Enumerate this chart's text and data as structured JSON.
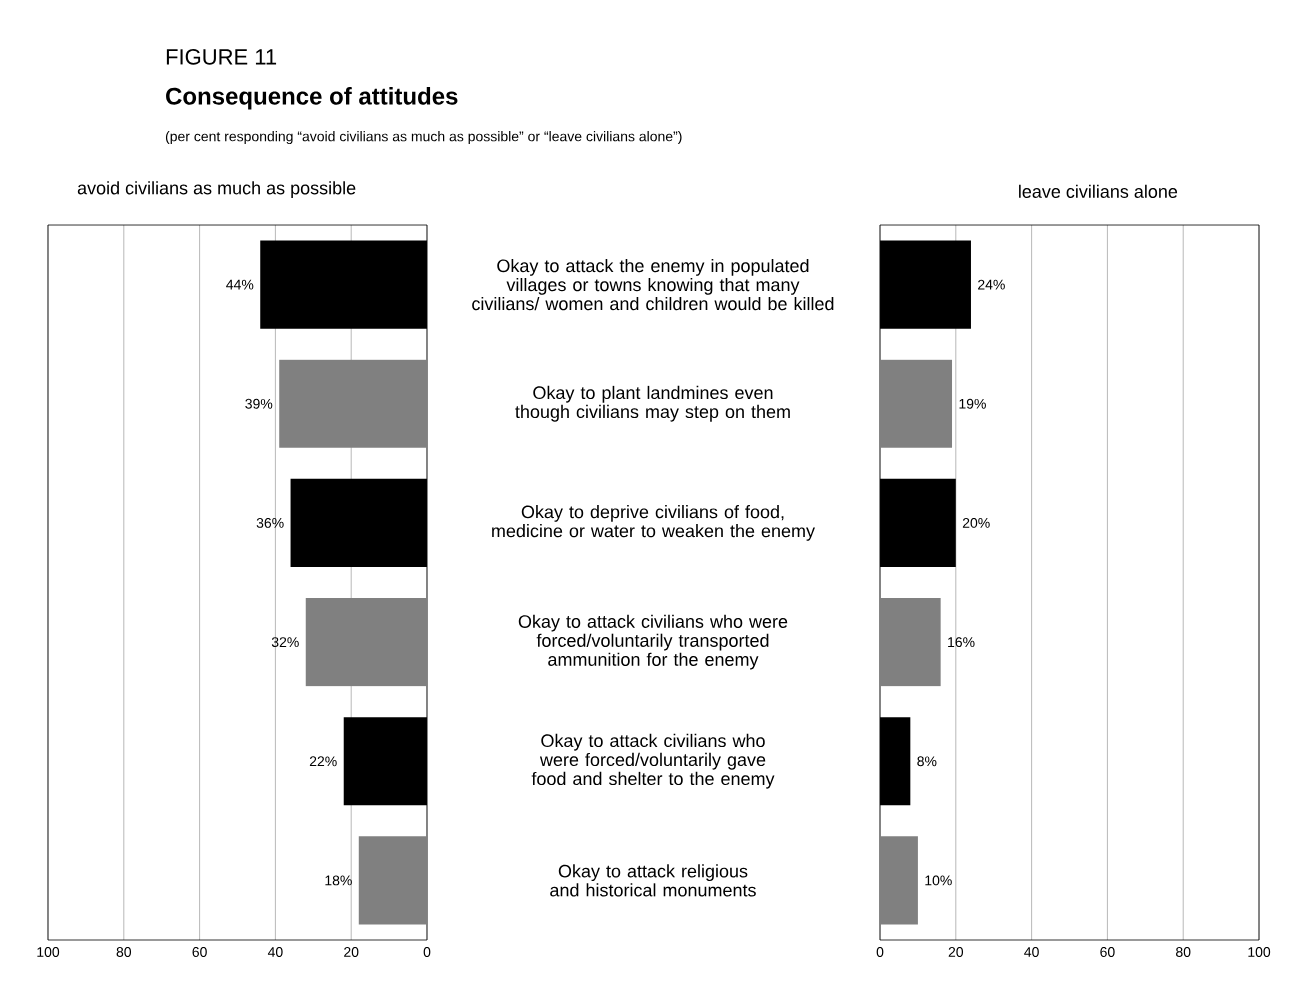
{
  "chart_data": [
    {
      "type": "other",
      "title": "Consequence of attitudes",
      "subtitle": "(per cent responding “avoid civilians as much as possible” or “leave civilians alone”)",
      "annotations": [
        "FIGURE 11"
      ]
    },
    {
      "type": "bar",
      "orientation": "horizontal",
      "title": "avoid civilians as much as possible",
      "categories": [
        "Okay to attack the enemy in populated villages or towns knowing that many civilians/ women and children would be killed",
        "Okay to plant landmines even though civilians may step on them",
        "Okay to deprive civilians of food, medicine or water to weaken the enemy",
        "Okay to attack civilians who were forced/voluntarily transported ammunition for the enemy",
        "Okay to attack civilians who were forced/voluntarily gave food and shelter to the enemy",
        "Okay to attack religious and historical monuments"
      ],
      "values": [
        44,
        39,
        36,
        32,
        22,
        18
      ],
      "value_labels": [
        "44%",
        "39%",
        "36%",
        "32%",
        "22%",
        "18%"
      ],
      "colors": [
        "#000000",
        "#808080",
        "#000000",
        "#808080",
        "#000000",
        "#808080"
      ],
      "xlim": [
        100,
        0
      ],
      "xticks": [
        100,
        80,
        60,
        40,
        20,
        0
      ],
      "grid": "x"
    },
    {
      "type": "bar",
      "orientation": "horizontal",
      "title": "leave civilians alone",
      "categories": [
        null,
        null,
        null,
        null,
        null,
        null
      ],
      "values": [
        24,
        19,
        20,
        16,
        8,
        10
      ],
      "value_labels": [
        "24%",
        "19%",
        "20%",
        "16%",
        "8%",
        "10%"
      ],
      "colors": [
        "#000000",
        "#808080",
        "#000000",
        "#808080",
        "#000000",
        "#808080"
      ],
      "xlim": [
        0,
        100
      ],
      "xticks": [
        0,
        20,
        40,
        60,
        80,
        100
      ],
      "grid": "x",
      "tick_labels": "x"
    }
  ]
}
